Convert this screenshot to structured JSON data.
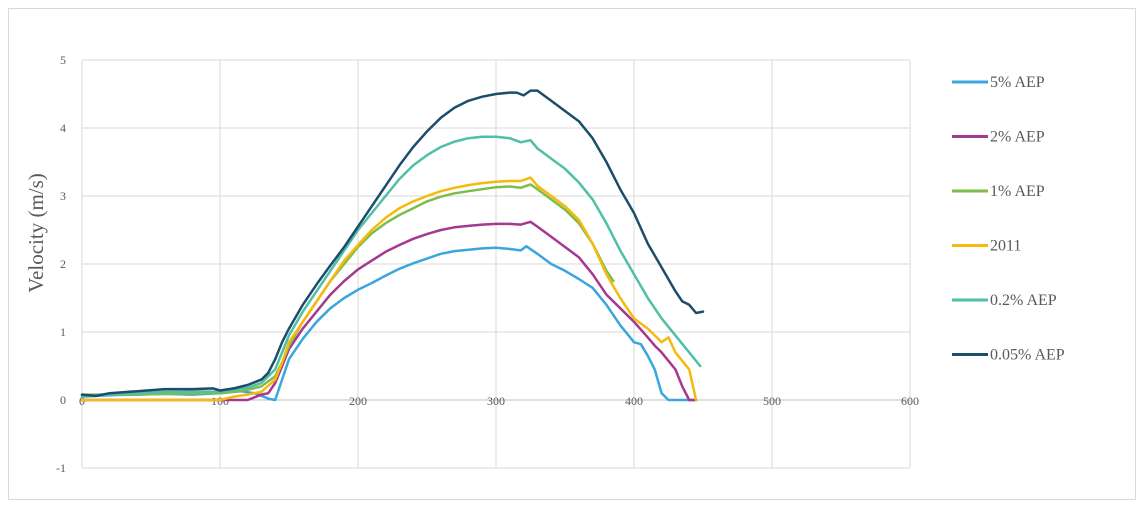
{
  "chart_data": {
    "type": "line",
    "title": "",
    "xlabel": "",
    "ylabel": "Velocity (m/s)",
    "xlim": [
      0,
      600
    ],
    "ylim": [
      -1,
      5
    ],
    "xticks": [
      0,
      100,
      200,
      300,
      400,
      500,
      600
    ],
    "yticks": [
      -1,
      0,
      1,
      2,
      3,
      4,
      5
    ],
    "grid": true,
    "legend_position": "right",
    "series": [
      {
        "name": "5% AEP",
        "color": "#3aa6dd",
        "points": [
          [
            0,
            0.05
          ],
          [
            20,
            0.07
          ],
          [
            40,
            0.08
          ],
          [
            60,
            0.09
          ],
          [
            80,
            0.08
          ],
          [
            100,
            0.1
          ],
          [
            115,
            0.13
          ],
          [
            125,
            0.1
          ],
          [
            135,
            0.02
          ],
          [
            140,
            0.0
          ],
          [
            145,
            0.3
          ],
          [
            150,
            0.6
          ],
          [
            160,
            0.9
          ],
          [
            170,
            1.15
          ],
          [
            180,
            1.35
          ],
          [
            190,
            1.5
          ],
          [
            200,
            1.62
          ],
          [
            210,
            1.72
          ],
          [
            220,
            1.83
          ],
          [
            230,
            1.93
          ],
          [
            240,
            2.01
          ],
          [
            250,
            2.08
          ],
          [
            260,
            2.15
          ],
          [
            270,
            2.19
          ],
          [
            280,
            2.21
          ],
          [
            290,
            2.23
          ],
          [
            300,
            2.24
          ],
          [
            310,
            2.22
          ],
          [
            318,
            2.2
          ],
          [
            322,
            2.26
          ],
          [
            330,
            2.15
          ],
          [
            340,
            2.0
          ],
          [
            350,
            1.9
          ],
          [
            360,
            1.78
          ],
          [
            370,
            1.65
          ],
          [
            380,
            1.4
          ],
          [
            390,
            1.1
          ],
          [
            400,
            0.85
          ],
          [
            405,
            0.82
          ],
          [
            410,
            0.65
          ],
          [
            415,
            0.45
          ],
          [
            420,
            0.1
          ],
          [
            425,
            0.0
          ],
          [
            445,
            0.0
          ]
        ]
      },
      {
        "name": "2% AEP",
        "color": "#a5398f",
        "points": [
          [
            0,
            0.0
          ],
          [
            20,
            0.0
          ],
          [
            40,
            0.0
          ],
          [
            60,
            0.0
          ],
          [
            80,
            0.0
          ],
          [
            100,
            0.0
          ],
          [
            110,
            0.0
          ],
          [
            120,
            0.0
          ],
          [
            130,
            0.08
          ],
          [
            135,
            0.1
          ],
          [
            140,
            0.25
          ],
          [
            145,
            0.5
          ],
          [
            150,
            0.75
          ],
          [
            160,
            1.05
          ],
          [
            170,
            1.3
          ],
          [
            180,
            1.55
          ],
          [
            190,
            1.75
          ],
          [
            200,
            1.92
          ],
          [
            210,
            2.05
          ],
          [
            220,
            2.18
          ],
          [
            230,
            2.28
          ],
          [
            240,
            2.37
          ],
          [
            250,
            2.44
          ],
          [
            260,
            2.5
          ],
          [
            270,
            2.54
          ],
          [
            280,
            2.56
          ],
          [
            290,
            2.58
          ],
          [
            300,
            2.59
          ],
          [
            310,
            2.59
          ],
          [
            318,
            2.58
          ],
          [
            325,
            2.62
          ],
          [
            330,
            2.55
          ],
          [
            340,
            2.4
          ],
          [
            350,
            2.25
          ],
          [
            360,
            2.1
          ],
          [
            370,
            1.85
          ],
          [
            380,
            1.55
          ],
          [
            390,
            1.35
          ],
          [
            400,
            1.15
          ],
          [
            410,
            0.92
          ],
          [
            415,
            0.8
          ],
          [
            420,
            0.7
          ],
          [
            430,
            0.45
          ],
          [
            435,
            0.2
          ],
          [
            440,
            0.0
          ],
          [
            445,
            0.0
          ]
        ]
      },
      {
        "name": "1% AEP",
        "color": "#7ebd4b",
        "points": [
          [
            0,
            0.08
          ],
          [
            20,
            0.08
          ],
          [
            40,
            0.08
          ],
          [
            60,
            0.09
          ],
          [
            80,
            0.1
          ],
          [
            100,
            0.1
          ],
          [
            110,
            0.12
          ],
          [
            120,
            0.15
          ],
          [
            130,
            0.2
          ],
          [
            140,
            0.35
          ],
          [
            145,
            0.55
          ],
          [
            150,
            0.8
          ],
          [
            160,
            1.15
          ],
          [
            170,
            1.45
          ],
          [
            180,
            1.75
          ],
          [
            190,
            2.0
          ],
          [
            200,
            2.25
          ],
          [
            210,
            2.45
          ],
          [
            220,
            2.6
          ],
          [
            230,
            2.72
          ],
          [
            240,
            2.82
          ],
          [
            250,
            2.92
          ],
          [
            260,
            2.99
          ],
          [
            270,
            3.04
          ],
          [
            280,
            3.07
          ],
          [
            290,
            3.1
          ],
          [
            300,
            3.13
          ],
          [
            310,
            3.14
          ],
          [
            318,
            3.12
          ],
          [
            325,
            3.17
          ],
          [
            330,
            3.1
          ],
          [
            340,
            2.95
          ],
          [
            350,
            2.8
          ],
          [
            360,
            2.6
          ],
          [
            370,
            2.3
          ],
          [
            380,
            1.9
          ],
          [
            385,
            1.75
          ]
        ]
      },
      {
        "name": "2011",
        "color": "#f6b90e",
        "points": [
          [
            0,
            0.0
          ],
          [
            20,
            0.0
          ],
          [
            40,
            0.0
          ],
          [
            60,
            0.0
          ],
          [
            80,
            0.0
          ],
          [
            100,
            0.0
          ],
          [
            110,
            0.05
          ],
          [
            120,
            0.08
          ],
          [
            130,
            0.12
          ],
          [
            140,
            0.3
          ],
          [
            145,
            0.55
          ],
          [
            150,
            0.85
          ],
          [
            160,
            1.15
          ],
          [
            170,
            1.45
          ],
          [
            180,
            1.75
          ],
          [
            190,
            2.05
          ],
          [
            200,
            2.28
          ],
          [
            210,
            2.5
          ],
          [
            220,
            2.68
          ],
          [
            230,
            2.82
          ],
          [
            240,
            2.92
          ],
          [
            250,
            3.0
          ],
          [
            260,
            3.07
          ],
          [
            270,
            3.12
          ],
          [
            280,
            3.16
          ],
          [
            290,
            3.19
          ],
          [
            300,
            3.21
          ],
          [
            310,
            3.22
          ],
          [
            318,
            3.22
          ],
          [
            325,
            3.27
          ],
          [
            330,
            3.15
          ],
          [
            340,
            3.0
          ],
          [
            350,
            2.85
          ],
          [
            360,
            2.65
          ],
          [
            370,
            2.3
          ],
          [
            380,
            1.85
          ],
          [
            390,
            1.5
          ],
          [
            400,
            1.2
          ],
          [
            410,
            1.05
          ],
          [
            420,
            0.85
          ],
          [
            425,
            0.92
          ],
          [
            430,
            0.7
          ],
          [
            440,
            0.45
          ],
          [
            445,
            0.0
          ]
        ]
      },
      {
        "name": "0.2% AEP",
        "color": "#4fbfa8",
        "points": [
          [
            0,
            0.06
          ],
          [
            20,
            0.08
          ],
          [
            40,
            0.1
          ],
          [
            60,
            0.12
          ],
          [
            80,
            0.13
          ],
          [
            100,
            0.12
          ],
          [
            110,
            0.15
          ],
          [
            120,
            0.18
          ],
          [
            130,
            0.25
          ],
          [
            140,
            0.45
          ],
          [
            145,
            0.7
          ],
          [
            150,
            0.95
          ],
          [
            160,
            1.3
          ],
          [
            170,
            1.6
          ],
          [
            180,
            1.9
          ],
          [
            190,
            2.2
          ],
          [
            200,
            2.5
          ],
          [
            210,
            2.75
          ],
          [
            220,
            3.0
          ],
          [
            230,
            3.25
          ],
          [
            240,
            3.45
          ],
          [
            250,
            3.6
          ],
          [
            260,
            3.72
          ],
          [
            270,
            3.8
          ],
          [
            280,
            3.85
          ],
          [
            290,
            3.87
          ],
          [
            300,
            3.87
          ],
          [
            310,
            3.85
          ],
          [
            318,
            3.79
          ],
          [
            325,
            3.82
          ],
          [
            330,
            3.7
          ],
          [
            340,
            3.55
          ],
          [
            350,
            3.4
          ],
          [
            360,
            3.2
          ],
          [
            370,
            2.95
          ],
          [
            380,
            2.6
          ],
          [
            390,
            2.2
          ],
          [
            400,
            1.85
          ],
          [
            410,
            1.5
          ],
          [
            420,
            1.2
          ],
          [
            430,
            0.95
          ],
          [
            440,
            0.7
          ],
          [
            448,
            0.5
          ]
        ]
      },
      {
        "name": "0.05% AEP",
        "color": "#1c4e6b",
        "points": [
          [
            0,
            0.08
          ],
          [
            10,
            0.06
          ],
          [
            20,
            0.1
          ],
          [
            40,
            0.13
          ],
          [
            60,
            0.16
          ],
          [
            80,
            0.16
          ],
          [
            95,
            0.17
          ],
          [
            100,
            0.14
          ],
          [
            110,
            0.17
          ],
          [
            120,
            0.22
          ],
          [
            130,
            0.3
          ],
          [
            135,
            0.4
          ],
          [
            140,
            0.6
          ],
          [
            145,
            0.85
          ],
          [
            150,
            1.05
          ],
          [
            160,
            1.4
          ],
          [
            170,
            1.7
          ],
          [
            180,
            1.98
          ],
          [
            190,
            2.25
          ],
          [
            200,
            2.55
          ],
          [
            210,
            2.85
          ],
          [
            220,
            3.15
          ],
          [
            230,
            3.45
          ],
          [
            240,
            3.72
          ],
          [
            250,
            3.95
          ],
          [
            260,
            4.15
          ],
          [
            270,
            4.3
          ],
          [
            280,
            4.4
          ],
          [
            290,
            4.46
          ],
          [
            300,
            4.5
          ],
          [
            310,
            4.52
          ],
          [
            315,
            4.52
          ],
          [
            320,
            4.48
          ],
          [
            325,
            4.55
          ],
          [
            330,
            4.55
          ],
          [
            340,
            4.4
          ],
          [
            350,
            4.25
          ],
          [
            360,
            4.1
          ],
          [
            370,
            3.85
          ],
          [
            380,
            3.5
          ],
          [
            390,
            3.1
          ],
          [
            400,
            2.75
          ],
          [
            410,
            2.3
          ],
          [
            420,
            1.95
          ],
          [
            430,
            1.6
          ],
          [
            435,
            1.45
          ],
          [
            440,
            1.4
          ],
          [
            445,
            1.28
          ],
          [
            450,
            1.3
          ]
        ]
      }
    ]
  }
}
